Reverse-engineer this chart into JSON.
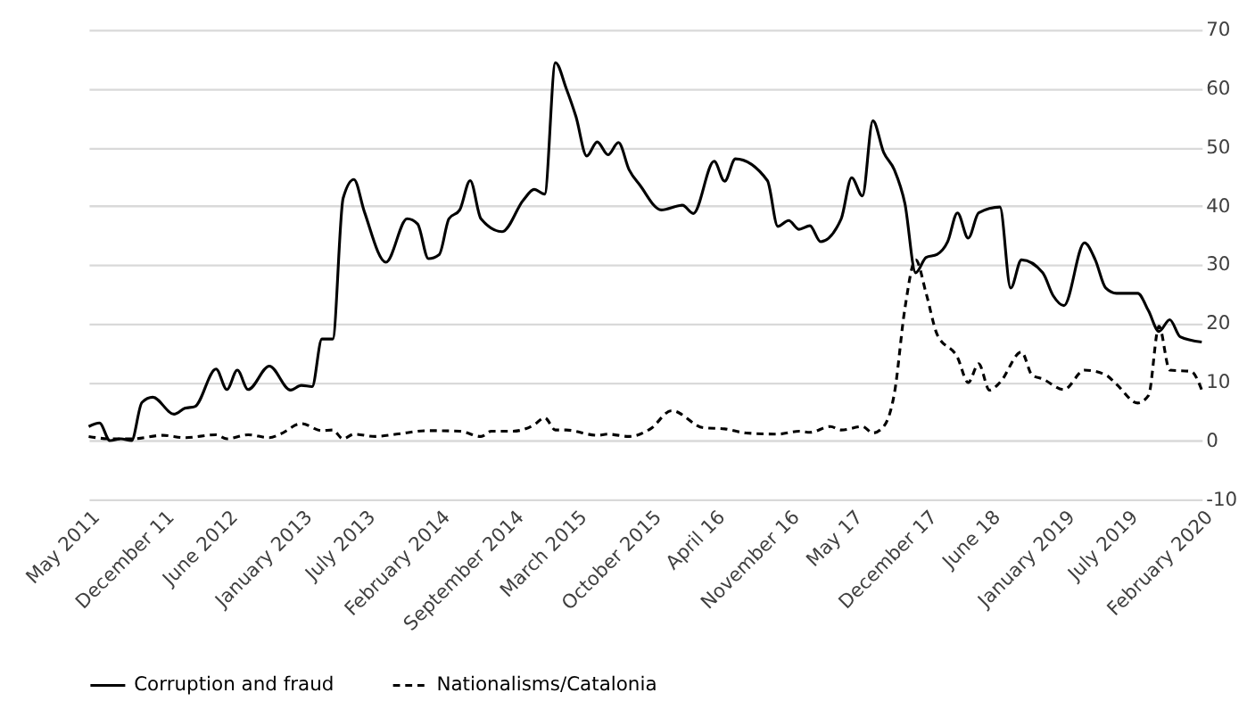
{
  "chart_data": {
    "type": "line",
    "ylim": [
      -10,
      70
    ],
    "yticks": [
      -10,
      0,
      10,
      20,
      30,
      40,
      50,
      60,
      70
    ],
    "xlim": [
      "2011-05",
      "2020-02"
    ],
    "xticks": [
      {
        "value": "2011-05",
        "label": "May 2011"
      },
      {
        "value": "2011-12",
        "label": "December 11"
      },
      {
        "value": "2012-06",
        "label": "June 2012"
      },
      {
        "value": "2013-01",
        "label": "January 2013"
      },
      {
        "value": "2013-07",
        "label": "July 2013"
      },
      {
        "value": "2014-02",
        "label": "February 2014"
      },
      {
        "value": "2014-09",
        "label": "September 2014"
      },
      {
        "value": "2015-03",
        "label": "March 2015"
      },
      {
        "value": "2015-10",
        "label": "October 2015"
      },
      {
        "value": "2016-04",
        "label": "April 16"
      },
      {
        "value": "2016-11",
        "label": "November 16"
      },
      {
        "value": "2017-05",
        "label": "May 17"
      },
      {
        "value": "2017-12",
        "label": "December 17"
      },
      {
        "value": "2018-06",
        "label": "June 18"
      },
      {
        "value": "2019-01",
        "label": "January 2019"
      },
      {
        "value": "2019-07",
        "label": "July 2019"
      },
      {
        "value": "2020-02",
        "label": "February 2020"
      }
    ],
    "grid": "y",
    "legend": "bottom",
    "marker": "none",
    "series": [
      {
        "name": "Corruption and fraud",
        "color": "#000000",
        "line_style": "solid",
        "x": [
          "2011-05",
          "2011-06",
          "2011-07",
          "2011-08",
          "2011-09",
          "2011-10",
          "2011-11",
          "2012-01",
          "2012-02",
          "2012-03",
          "2012-05",
          "2012-06",
          "2012-07",
          "2012-08",
          "2012-10",
          "2012-12",
          "2013-01",
          "2013-02",
          "2013-03",
          "2013-04",
          "2013-05",
          "2013-06",
          "2013-07",
          "2013-09",
          "2013-11",
          "2013-12",
          "2014-01",
          "2014-02",
          "2014-03",
          "2014-04",
          "2014-05",
          "2014-06",
          "2014-08",
          "2014-10",
          "2014-11",
          "2014-12",
          "2015-01",
          "2015-02",
          "2015-03",
          "2015-04",
          "2015-05",
          "2015-06",
          "2015-07",
          "2015-08",
          "2015-09",
          "2015-11",
          "2016-01",
          "2016-02",
          "2016-04",
          "2016-05",
          "2016-06",
          "2016-09",
          "2016-10",
          "2016-11",
          "2016-12",
          "2017-01",
          "2017-02",
          "2017-04",
          "2017-05",
          "2017-06",
          "2017-07",
          "2017-08",
          "2017-09",
          "2017-10",
          "2017-11",
          "2017-12",
          "2018-01",
          "2018-02",
          "2018-03",
          "2018-04",
          "2018-05",
          "2018-07",
          "2018-08",
          "2018-09",
          "2018-11",
          "2018-12",
          "2019-01",
          "2019-03",
          "2019-04",
          "2019-05",
          "2019-06",
          "2019-08",
          "2019-09",
          "2019-10",
          "2019-11",
          "2019-12",
          "2020-02"
        ],
        "values": [
          2.4,
          3,
          0,
          0.3,
          0,
          6.5,
          7.4,
          4.5,
          5.5,
          5.8,
          12.2,
          8.7,
          12,
          8.7,
          12.7,
          8.6,
          9.4,
          9.2,
          17.3,
          17.3,
          41.3,
          44.5,
          39,
          30.4,
          37.8,
          36.9,
          31,
          31.7,
          37.8,
          39.3,
          44.3,
          37.8,
          35.6,
          41,
          42.8,
          42,
          64.4,
          60,
          55.2,
          48.5,
          50.9,
          48.7,
          50.8,
          46.1,
          43.5,
          39.3,
          40.1,
          38.7,
          47.6,
          44.2,
          48,
          44.3,
          36.5,
          37.5,
          36,
          36.6,
          33.9,
          37.8,
          44.8,
          41.7,
          54.5,
          49.1,
          46.1,
          40.4,
          28.6,
          31.2,
          31.7,
          33.9,
          38.8,
          34.5,
          38.8,
          39.8,
          26,
          30.8,
          28.6,
          24.7,
          23,
          33.7,
          30.8,
          26,
          25.1,
          25.1,
          22.1,
          18.6,
          20.6,
          17.7,
          16.8
        ]
      },
      {
        "name": "Nationalisms/Catalonia",
        "color": "#000000",
        "line_style": "dashed",
        "x": [
          "2011-05",
          "2011-07",
          "2011-09",
          "2011-12",
          "2012-02",
          "2012-05",
          "2012-06",
          "2012-08",
          "2012-10",
          "2012-11",
          "2013-01",
          "2013-03",
          "2013-04",
          "2013-05",
          "2013-06",
          "2013-08",
          "2013-10",
          "2014-01",
          "2014-04",
          "2014-06",
          "2014-07",
          "2014-09",
          "2014-11",
          "2014-12",
          "2015-01",
          "2015-02",
          "2015-05",
          "2015-06",
          "2015-08",
          "2015-10",
          "2015-12",
          "2016-03",
          "2016-05",
          "2016-07",
          "2016-10",
          "2016-12",
          "2017-01",
          "2017-03",
          "2017-04",
          "2017-06",
          "2017-07",
          "2017-08",
          "2017-09",
          "2017-10",
          "2017-11",
          "2017-12",
          "2018-01",
          "2018-03",
          "2018-04",
          "2018-05",
          "2018-06",
          "2018-07",
          "2018-09",
          "2018-10",
          "2018-11",
          "2019-01",
          "2019-03",
          "2019-05",
          "2019-06",
          "2019-08",
          "2019-09",
          "2019-10",
          "2019-11",
          "2020-01",
          "2020-02"
        ],
        "values": [
          0.7,
          0.3,
          0.3,
          0.9,
          0.5,
          1,
          0.3,
          1,
          0.5,
          1.1,
          2.9,
          1.7,
          1.8,
          0.3,
          1.1,
          0.7,
          1.1,
          1.7,
          1.6,
          0.7,
          1.6,
          1.6,
          2.7,
          3.9,
          1.8,
          1.8,
          0.9,
          1.1,
          0.7,
          2,
          5.1,
          2.2,
          2,
          1.3,
          1.1,
          1.6,
          1.4,
          2.4,
          1.8,
          2.4,
          1.3,
          2.4,
          8.1,
          22.5,
          30.8,
          25.1,
          18.2,
          14.2,
          9.9,
          13.1,
          8.6,
          9.9,
          15.1,
          11.2,
          10.5,
          8.7,
          12,
          11.2,
          9.6,
          6.4,
          7.7,
          19.5,
          12,
          11.8,
          8.6
        ]
      }
    ]
  }
}
